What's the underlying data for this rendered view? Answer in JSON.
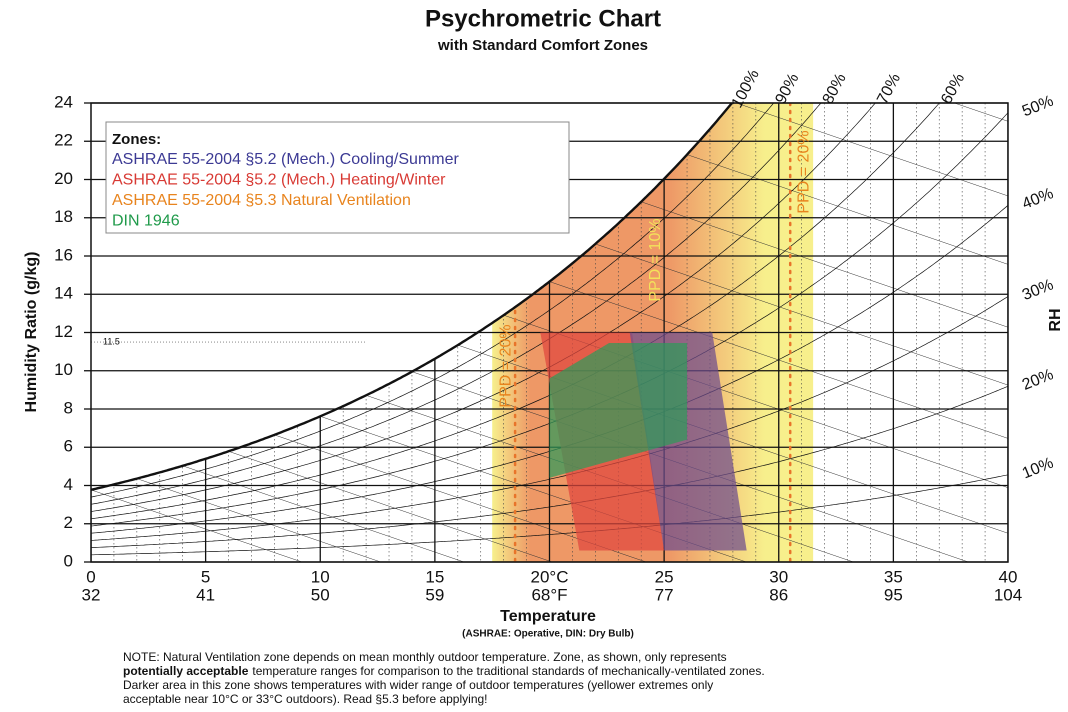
{
  "chart_data": {
    "type": "psychrometric",
    "title": "Psychrometric Chart",
    "subtitle": "with Standard Comfort Zones",
    "x_label": "Temperature",
    "x_sublabel": "(ASHRAE: Operative, DIN: Dry Bulb)",
    "y_label": "Humidity Ratio (g/kg)",
    "y2_label": "RH",
    "xlim": [
      0,
      40
    ],
    "ylim": [
      0,
      24
    ],
    "xticks": [
      0,
      5,
      10,
      15,
      {
        "value": 20,
        "label": "20°C"
      },
      25,
      30,
      35,
      40
    ],
    "xticks_f": [
      32,
      41,
      50,
      59,
      {
        "value": 68,
        "label": "68°F"
      },
      77,
      86,
      95,
      104
    ],
    "yticks": [
      0,
      2,
      4,
      6,
      8,
      10,
      12,
      14,
      16,
      18,
      20,
      22,
      24
    ],
    "grid": true,
    "reference_line": 11.5,
    "rh_curves": {
      "values": [
        100,
        90,
        80,
        70,
        60,
        50,
        40,
        30,
        20,
        10
      ],
      "value_labels": [
        "100%",
        "90%",
        "80%",
        "70%",
        "60%",
        "50%",
        "40%",
        "30%",
        "20%",
        "10%"
      ]
    },
    "legend_title": "Zones:",
    "zones": [
      {
        "name": "ASHRAE 55-2004 §5.2 (Mech.) Cooling/Summer",
        "color": "#3c3a94",
        "fill": "#6e4c8e",
        "points": [
          [
            23.5,
            12
          ],
          [
            27.1,
            12
          ],
          [
            28.6,
            0.6
          ],
          [
            25.0,
            0.6
          ]
        ]
      },
      {
        "name": "ASHRAE 55-2004 §5.2 (Mech.) Heating/Winter",
        "color": "#d83a34",
        "fill": "#e0463e",
        "points": [
          [
            19.6,
            12
          ],
          [
            23.6,
            12
          ],
          [
            25.0,
            0.6
          ],
          [
            21.3,
            0.6
          ]
        ]
      },
      {
        "name": "ASHRAE 55-2004 §5.3 Natural Ventilation",
        "color": "#e8841e",
        "fill": "#ef9a66",
        "gradient": [
          "#f7ef8c",
          "#ee9866",
          "#f7ef8c"
        ],
        "points": [
          [
            17.5,
            0
          ],
          [
            31.5,
            0
          ],
          [
            31.5,
            24
          ],
          [
            17.5,
            24
          ]
        ]
      },
      {
        "name": "DIN 1946",
        "color": "#1f9a4a",
        "fill": "#2f9a5a",
        "points": [
          [
            20.0,
            4.4
          ],
          [
            20.0,
            9.6
          ],
          [
            22.6,
            11.45
          ],
          [
            26.0,
            11.45
          ],
          [
            26.0,
            6.4
          ]
        ]
      }
    ],
    "ppd_lines": [
      {
        "label": "PPD = 20%",
        "x": 18.5
      },
      {
        "label": "PPD = 20%",
        "x": 30.5
      }
    ],
    "ppd_center_label": "PPD = 10%",
    "note": {
      "line1": "NOTE: Natural Ventilation zone depends on mean monthly outdoor temperature. Zone, as shown, only represents",
      "line2_bold": "potentially acceptable",
      "line2": "temperature ranges for comparison to the traditional standards of mechanically-ventilated zones.",
      "line3": "Darker area in this zone shows temperatures with wider range of outdoor temperatures (yellower extremes only",
      "line4": "acceptable near 10°C or 33°C outdoors).  Read §5.3 before applying!"
    }
  }
}
